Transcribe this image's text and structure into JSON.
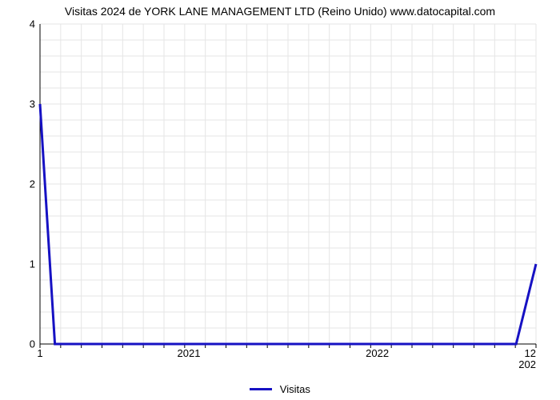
{
  "chart": {
    "type": "line",
    "title": "Visitas 2024 de YORK LANE MANAGEMENT LTD (Reino Unido) www.datocapital.com",
    "title_fontsize": 14,
    "background_color": "#ffffff",
    "grid_color": "#e5e5e5",
    "grid_line_width": 1,
    "axis_color": "#000000",
    "tick_color": "#000000",
    "tick_fontsize": 13,
    "y_axis": {
      "min": 0,
      "max": 4,
      "major_ticks": [
        0,
        1,
        2,
        3,
        4
      ],
      "tick_labels": [
        "0",
        "1",
        "2",
        "3",
        "4"
      ]
    },
    "x_axis": {
      "min": 1,
      "max": 12,
      "start_label": "1",
      "end_label": "12",
      "major_ticks": [
        2021,
        2022,
        202
      ],
      "minor_tick_count": 24
    },
    "series": {
      "label": "Visitas",
      "color": "#1611c3",
      "line_width": 3,
      "points": [
        {
          "xfrac": 0.0,
          "y": 3.0
        },
        {
          "xfrac": 0.03,
          "y": 0.0
        },
        {
          "xfrac": 0.96,
          "y": 0.0
        },
        {
          "xfrac": 1.0,
          "y": 1.0
        }
      ]
    },
    "legend": {
      "position": "bottom-center",
      "swatch_width": 28,
      "swatch_line_width": 3
    }
  }
}
